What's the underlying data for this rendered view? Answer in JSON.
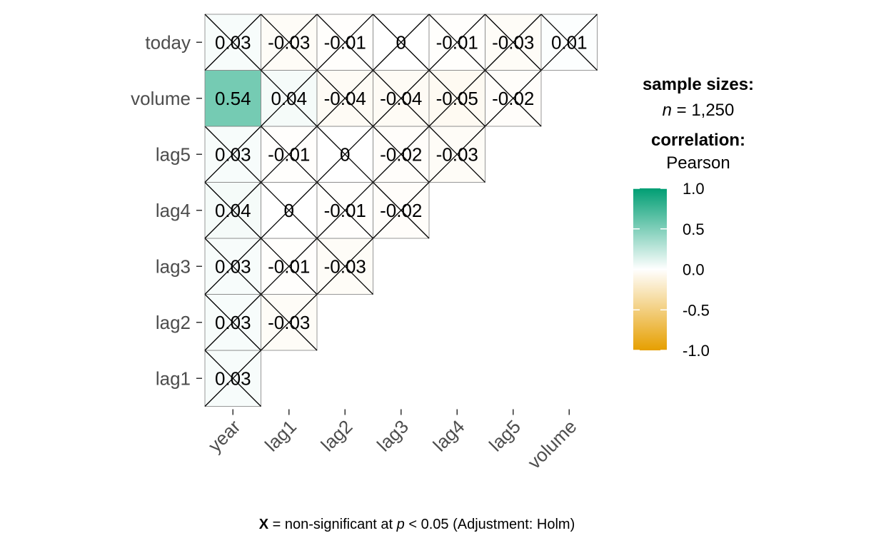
{
  "chart_data": {
    "type": "heatmap",
    "x_labels": [
      "year",
      "lag1",
      "lag2",
      "lag3",
      "lag4",
      "lag5",
      "volume"
    ],
    "y_labels": [
      "lag1",
      "lag2",
      "lag3",
      "lag4",
      "lag5",
      "volume",
      "today"
    ],
    "cells": [
      {
        "x": "year",
        "y": "lag1",
        "value": 0.03,
        "label": "0.03",
        "nonsig": true
      },
      {
        "x": "year",
        "y": "lag2",
        "value": 0.03,
        "label": "0.03",
        "nonsig": true
      },
      {
        "x": "lag1",
        "y": "lag2",
        "value": -0.03,
        "label": "-0.03",
        "nonsig": true
      },
      {
        "x": "year",
        "y": "lag3",
        "value": 0.03,
        "label": "0.03",
        "nonsig": true
      },
      {
        "x": "lag1",
        "y": "lag3",
        "value": -0.01,
        "label": "-0.01",
        "nonsig": true
      },
      {
        "x": "lag2",
        "y": "lag3",
        "value": -0.03,
        "label": "-0.03",
        "nonsig": true
      },
      {
        "x": "year",
        "y": "lag4",
        "value": 0.04,
        "label": "0.04",
        "nonsig": true
      },
      {
        "x": "lag1",
        "y": "lag4",
        "value": 0,
        "label": "0",
        "nonsig": true
      },
      {
        "x": "lag2",
        "y": "lag4",
        "value": -0.01,
        "label": "-0.01",
        "nonsig": true
      },
      {
        "x": "lag3",
        "y": "lag4",
        "value": -0.02,
        "label": "-0.02",
        "nonsig": true
      },
      {
        "x": "year",
        "y": "lag5",
        "value": 0.03,
        "label": "0.03",
        "nonsig": true
      },
      {
        "x": "lag1",
        "y": "lag5",
        "value": -0.01,
        "label": "-0.01",
        "nonsig": true
      },
      {
        "x": "lag2",
        "y": "lag5",
        "value": 0,
        "label": "0",
        "nonsig": true
      },
      {
        "x": "lag3",
        "y": "lag5",
        "value": -0.02,
        "label": "-0.02",
        "nonsig": true
      },
      {
        "x": "lag4",
        "y": "lag5",
        "value": -0.03,
        "label": "-0.03",
        "nonsig": true
      },
      {
        "x": "year",
        "y": "volume",
        "value": 0.54,
        "label": "0.54",
        "nonsig": false
      },
      {
        "x": "lag1",
        "y": "volume",
        "value": 0.04,
        "label": "0.04",
        "nonsig": true
      },
      {
        "x": "lag2",
        "y": "volume",
        "value": -0.04,
        "label": "-0.04",
        "nonsig": true
      },
      {
        "x": "lag3",
        "y": "volume",
        "value": -0.04,
        "label": "-0.04",
        "nonsig": true
      },
      {
        "x": "lag4",
        "y": "volume",
        "value": -0.05,
        "label": "-0.05",
        "nonsig": true
      },
      {
        "x": "lag5",
        "y": "volume",
        "value": -0.02,
        "label": "-0.02",
        "nonsig": true
      },
      {
        "x": "year",
        "y": "today",
        "value": 0.03,
        "label": "0.03",
        "nonsig": true
      },
      {
        "x": "lag1",
        "y": "today",
        "value": -0.03,
        "label": "-0.03",
        "nonsig": true
      },
      {
        "x": "lag2",
        "y": "today",
        "value": -0.01,
        "label": "-0.01",
        "nonsig": true
      },
      {
        "x": "lag3",
        "y": "today",
        "value": 0,
        "label": "0",
        "nonsig": true
      },
      {
        "x": "lag4",
        "y": "today",
        "value": -0.01,
        "label": "-0.01",
        "nonsig": true
      },
      {
        "x": "lag5",
        "y": "today",
        "value": -0.03,
        "label": "-0.03",
        "nonsig": true
      },
      {
        "x": "volume",
        "y": "today",
        "value": 0.01,
        "label": "0.01",
        "nonsig": true
      }
    ],
    "color_scale": {
      "low": "#E69F00",
      "mid": "#FFFFFF",
      "high": "#009E73",
      "limits": [
        -1.0,
        1.0
      ],
      "ticks": [
        1.0,
        0.5,
        0.0,
        -0.5,
        -1.0
      ],
      "tick_labels": [
        "1.0",
        "0.5",
        "0.0",
        "-0.5",
        "-1.0"
      ]
    },
    "legend": {
      "sample_title": "sample sizes:",
      "sample_n_symbol": "n",
      "sample_n_rest": " = 1,250",
      "corr_title": "correlation:",
      "corr_method": "Pearson"
    },
    "caption": {
      "mark": "X",
      "text1": " = non-significant at ",
      "p_symbol": "p",
      "text2": " < 0.05 (Adjustment: Holm)"
    }
  }
}
